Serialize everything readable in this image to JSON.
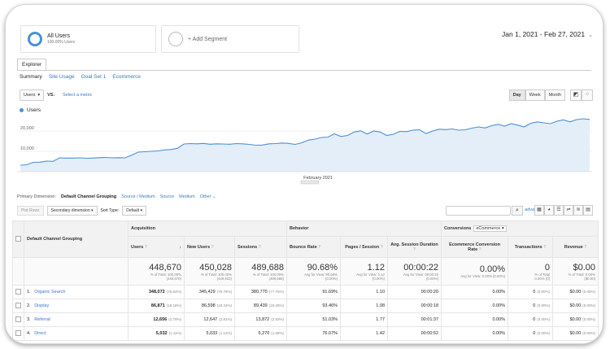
{
  "segments": {
    "primary": {
      "name": "All Users",
      "sub": "100.00% Users"
    },
    "add_label": "+ Add Segment"
  },
  "date_range": "Jan 1, 2021 - Feb 27, 2021",
  "tab": "Explorer",
  "subnav": [
    "Summary",
    "Site Usage",
    "Goal Set 1",
    "Ecommerce"
  ],
  "metric_select": "Users",
  "vs_label": "VS.",
  "select_metric": "Select a metric",
  "periods": [
    "Day",
    "Week",
    "Month"
  ],
  "legend": "Users",
  "chart_data": {
    "type": "area",
    "title": "",
    "series": [
      {
        "name": "Users",
        "values": [
          3200,
          3400,
          4600,
          4700,
          5200,
          5100,
          6800,
          6700,
          6700,
          6800,
          6600,
          6700,
          6900,
          7000,
          6800,
          6900,
          6800,
          8100,
          9600,
          9800,
          10000,
          10200,
          10700,
          10900,
          11500,
          13600,
          13800,
          13700,
          13900,
          13500,
          13700,
          13600,
          13500,
          13800,
          13700,
          13400,
          13000,
          13100,
          13700,
          13800,
          14100,
          13900,
          13400,
          14200,
          15500,
          16000,
          16800,
          17000,
          18600,
          17300,
          17800,
          19500,
          20100,
          18500,
          20000,
          19500,
          17800,
          18400,
          19800,
          19700,
          20400,
          20600,
          18700,
          20000,
          20900,
          20700,
          21000,
          20400,
          20600,
          21400,
          22000,
          21500,
          22600,
          23300,
          22400,
          23600,
          22900,
          22000,
          23800,
          24500,
          24000,
          23600,
          24800,
          25500,
          24500,
          25600,
          26000,
          25700
        ]
      }
    ],
    "yticks": [
      "20,000",
      "10,000"
    ],
    "xticks": [
      "February 2021"
    ],
    "ylim": [
      0,
      28000
    ],
    "color": "#4a90d9",
    "fill": "#e3eef9"
  },
  "primary_dimension": {
    "label": "Primary Dimension:",
    "current": "Default Channel Grouping",
    "options": [
      "Source / Medium",
      "Source",
      "Medium",
      "Other"
    ]
  },
  "table_tools": {
    "plot_rows": "Plot Rows",
    "secondary": "Secondary dimension",
    "sort_type_label": "Sort Type:",
    "sort_type": "Default",
    "advanced": "advanced"
  },
  "table": {
    "dimension_header": "Default Channel Grouping",
    "groups": {
      "acquisition": "Acquisition",
      "behavior": "Behavior",
      "conversions": "Conversions",
      "ecommerce": "eCommerce"
    },
    "columns": [
      "Users",
      "New Users",
      "Sessions",
      "Bounce Rate",
      "Pages / Session",
      "Avg. Session Duration",
      "Ecommerce Conversion Rate",
      "Transactions",
      "Revenue"
    ],
    "totals": [
      {
        "value": "448,670",
        "sub1": "% of Total: 100.00%",
        "sub2": "(448,670)"
      },
      {
        "value": "450,028",
        "sub1": "% of Total: 100.02%",
        "sub2": "(449,923)"
      },
      {
        "value": "489,688",
        "sub1": "% of Total: 100.00%",
        "sub2": "(489,688)"
      },
      {
        "value": "90.68%",
        "sub1": "Avg for View: 90.68%",
        "sub2": "(0.00%)"
      },
      {
        "value": "1.12",
        "sub1": "Avg for View: 1.12",
        "sub2": "(0.00%)"
      },
      {
        "value": "00:00:22",
        "sub1": "Avg for View: 00:00:22",
        "sub2": "(0.00%)"
      },
      {
        "value": "0.00%",
        "sub1": "Avg for View: 0.00% (0.00%)",
        "sub2": ""
      },
      {
        "value": "0",
        "sub1": "% of Total",
        "sub2": "0.00% (0)"
      },
      {
        "value": "$0.00",
        "sub1": "% of Total: 0.00%",
        "sub2": "($0.00)"
      }
    ],
    "rows": [
      {
        "idx": "1.",
        "name": "Organic Search",
        "users": "348,072",
        "users_pct": "(76.84%)",
        "new_users": "345,429",
        "new_pct": "(76.76%)",
        "sessions": "380,770",
        "sess_pct": "(77.76%)",
        "bounce": "91.69%",
        "pages": "1.10",
        "dur": "00:00:20",
        "conv": "0.00%",
        "trans": "0",
        "trans_pct": "(0.00%)",
        "rev": "$0.00",
        "rev_pct": "(0.00%)"
      },
      {
        "idx": "2.",
        "name": "Display",
        "users": "86,871",
        "users_pct": "(19.18%)",
        "new_users": "86,598",
        "new_pct": "(19.24%)",
        "sessions": "89,439",
        "sess_pct": "(18.26%)",
        "bounce": "93.46%",
        "pages": "1.08",
        "dur": "00:00:18",
        "conv": "0.00%",
        "trans": "0",
        "trans_pct": "(0.00%)",
        "rev": "$0.00",
        "rev_pct": "(0.00%)"
      },
      {
        "idx": "3.",
        "name": "Referral",
        "users": "12,656",
        "users_pct": "(2.79%)",
        "new_users": "12,647",
        "new_pct": "(2.81%)",
        "sessions": "13,872",
        "sess_pct": "(2.83%)",
        "bounce": "51.03%",
        "pages": "1.77",
        "dur": "00:01:37",
        "conv": "0.00%",
        "trans": "0",
        "trans_pct": "(0.00%)",
        "rev": "$0.00",
        "rev_pct": "(0.00%)"
      },
      {
        "idx": "4.",
        "name": "Direct",
        "users": "5,032",
        "users_pct": "(1.11%)",
        "new_users": "5,033",
        "new_pct": "(1.12%)",
        "sessions": "5,270",
        "sess_pct": "(1.08%)",
        "bounce": "76.07%",
        "pages": "1.42",
        "dur": "00:00:52",
        "conv": "0.00%",
        "trans": "0",
        "trans_pct": "(0.00%)",
        "rev": "$0.00",
        "rev_pct": "(0.00%)"
      }
    ]
  }
}
